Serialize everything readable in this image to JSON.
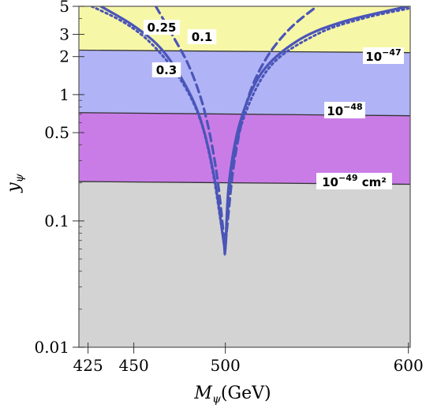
{
  "chart_data": {
    "type": "contour",
    "xlabel": "M_ψ (GeV)",
    "ylabel": "y_ψ",
    "xlim": [
      420,
      601
    ],
    "ylim": [
      0.01,
      5
    ],
    "yscale": "log",
    "x_ticks": [
      425,
      450,
      500,
      600
    ],
    "y_ticks": [
      {
        "value": 0.01,
        "label": "0.01"
      },
      {
        "value": 0.1,
        "label": "0.1"
      },
      {
        "value": 0.5,
        "label": "0.5"
      },
      {
        "value": 1,
        "label": "1"
      },
      {
        "value": 2,
        "label": "2"
      },
      {
        "value": 3,
        "label": "3"
      },
      {
        "value": 5,
        "label": "5"
      }
    ],
    "bands": [
      {
        "name": "10^-47 and above",
        "color": "#f7f7a8",
        "y_from_left": 2.25,
        "y_from_right": 2.15,
        "y_to": 5
      },
      {
        "name": "10^-48 to 10^-47",
        "color": "#b0b3f5",
        "y_from_left": 0.72,
        "y_from_right": 0.68,
        "y_to_left": 2.25,
        "y_to_right": 2.15
      },
      {
        "name": "10^-49 to 10^-48",
        "color": "#c97ce6",
        "y_from_left": 0.205,
        "y_from_right": 0.195,
        "y_to_left": 0.72,
        "y_to_right": 0.68
      },
      {
        "name": "below 10^-49",
        "color": "#d3d3d3",
        "y_from": 0.01,
        "y_to_left": 0.205,
        "y_to_right": 0.195
      }
    ],
    "band_boundaries": [
      {
        "label_base": "10",
        "label_exp": "−47",
        "label_suffix": "",
        "y_left": 2.25,
        "y_right": 2.15
      },
      {
        "label_base": "10",
        "label_exp": "−48",
        "label_suffix": "",
        "y_left": 0.72,
        "y_right": 0.68
      },
      {
        "label_base": "10",
        "label_exp": "−49",
        "label_suffix": " cm²",
        "y_left": 0.205,
        "y_right": 0.195
      }
    ],
    "series": [
      {
        "name": "0.3",
        "style": "solid",
        "color": "#4a55b8",
        "x": [
          432,
          450,
          465,
          478,
          487,
          494,
          499,
          500,
          502,
          508,
          520,
          540,
          565,
          600
        ],
        "y": [
          5,
          3.5,
          2.3,
          1.2,
          0.6,
          0.22,
          0.07,
          0.06,
          0.2,
          0.6,
          1.5,
          2.7,
          3.8,
          5
        ]
      },
      {
        "name": "0.25",
        "style": "dotted",
        "color": "#4a55b8",
        "x": [
          427,
          445,
          460,
          475,
          486,
          493,
          499,
          500,
          503,
          510,
          525,
          550,
          575,
          600
        ],
        "y": [
          5,
          3.7,
          2.5,
          1.35,
          0.65,
          0.25,
          0.07,
          0.06,
          0.22,
          0.65,
          1.7,
          3.0,
          4.0,
          4.8
        ]
      },
      {
        "name": "0.1",
        "style": "dashed",
        "color": "#4a55b8",
        "x": [
          462,
          472,
          480,
          487,
          492,
          496,
          499,
          500,
          501,
          505,
          512,
          522,
          535,
          550
        ],
        "y": [
          5,
          2.8,
          1.7,
          0.9,
          0.45,
          0.2,
          0.08,
          0.065,
          0.09,
          0.3,
          0.9,
          1.9,
          3.3,
          5
        ]
      }
    ],
    "line_labels": [
      {
        "text": "0.25",
        "series": "0.25"
      },
      {
        "text": "0.1",
        "series": "0.1"
      },
      {
        "text": "0.3",
        "series": "0.3"
      }
    ],
    "grid": false,
    "legend": "none"
  }
}
